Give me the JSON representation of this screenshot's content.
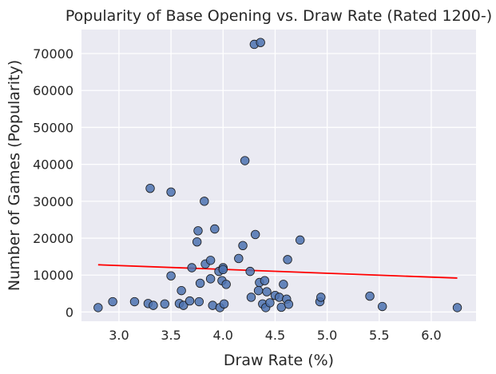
{
  "chart_data": {
    "type": "scatter",
    "title": "Popularity of Base Opening vs. Draw Rate (Rated 1200-)",
    "xlabel": "Draw Rate (%)",
    "ylabel": "Number of Games (Popularity)",
    "xlim": [
      2.64,
      6.43
    ],
    "ylim": [
      -2500,
      76500
    ],
    "xticks": [
      3.0,
      3.5,
      4.0,
      4.5,
      5.0,
      5.5,
      6.0
    ],
    "xtick_labels": [
      "3.0",
      "3.5",
      "4.0",
      "4.5",
      "5.0",
      "5.5",
      "6.0"
    ],
    "yticks": [
      0,
      10000,
      20000,
      30000,
      40000,
      50000,
      60000,
      70000
    ],
    "ytick_labels": [
      "0",
      "10000",
      "20000",
      "30000",
      "40000",
      "50000",
      "60000",
      "70000"
    ],
    "grid": true,
    "background": "#eaeaf2",
    "point_color": "#4c72b0",
    "line_color": "#ff0000",
    "points": [
      [
        2.8,
        1200
      ],
      [
        2.94,
        2800
      ],
      [
        3.15,
        2800
      ],
      [
        3.28,
        2300
      ],
      [
        3.33,
        1800
      ],
      [
        3.44,
        2200
      ],
      [
        3.3,
        33500
      ],
      [
        3.5,
        32500
      ],
      [
        3.5,
        9800
      ],
      [
        3.58,
        2300
      ],
      [
        3.62,
        1800
      ],
      [
        3.6,
        5800
      ],
      [
        3.68,
        3000
      ],
      [
        3.7,
        12000
      ],
      [
        3.75,
        19000
      ],
      [
        3.76,
        22000
      ],
      [
        3.77,
        2800
      ],
      [
        3.78,
        7800
      ],
      [
        3.82,
        30000
      ],
      [
        3.83,
        13000
      ],
      [
        3.88,
        14000
      ],
      [
        3.88,
        9000
      ],
      [
        3.9,
        1800
      ],
      [
        3.92,
        22500
      ],
      [
        3.96,
        11000
      ],
      [
        3.97,
        1200
      ],
      [
        4.0,
        12000
      ],
      [
        4.0,
        11500
      ],
      [
        3.99,
        8500
      ],
      [
        4.01,
        2200
      ],
      [
        4.03,
        7500
      ],
      [
        4.15,
        14500
      ],
      [
        4.19,
        18000
      ],
      [
        4.21,
        41000
      ],
      [
        4.26,
        11000
      ],
      [
        4.27,
        4000
      ],
      [
        4.3,
        72500
      ],
      [
        4.31,
        21000
      ],
      [
        4.36,
        73000
      ],
      [
        4.35,
        8000
      ],
      [
        4.34,
        5800
      ],
      [
        4.38,
        2200
      ],
      [
        4.4,
        8500
      ],
      [
        4.41,
        1200
      ],
      [
        4.42,
        5500
      ],
      [
        4.45,
        2500
      ],
      [
        4.5,
        4500
      ],
      [
        4.54,
        4000
      ],
      [
        4.56,
        1300
      ],
      [
        4.58,
        7500
      ],
      [
        4.61,
        3500
      ],
      [
        4.62,
        14200
      ],
      [
        4.63,
        2100
      ],
      [
        4.74,
        19500
      ],
      [
        4.93,
        2800
      ],
      [
        4.94,
        4000
      ],
      [
        5.41,
        4300
      ],
      [
        5.53,
        1500
      ],
      [
        6.25,
        1200
      ]
    ],
    "trend_line": {
      "x": [
        2.8,
        6.25
      ],
      "y": [
        12800,
        9200
      ]
    }
  }
}
